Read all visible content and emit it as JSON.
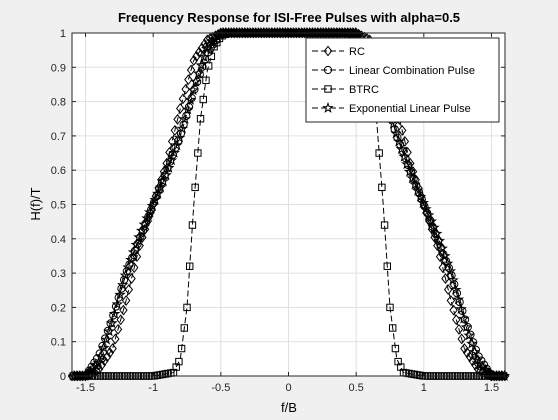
{
  "chart_data": {
    "type": "line",
    "title": "Frequency Response for ISI-Free Pulses with alpha=0.5",
    "xlabel": "f/B",
    "ylabel": "H(f)/T",
    "xlim": [
      -1.6,
      1.6
    ],
    "ylim": [
      0,
      1
    ],
    "xticks": [
      -1.5,
      -1,
      -0.5,
      0,
      0.5,
      1,
      1.5
    ],
    "xtick_labels": [
      "-1.5",
      "-1",
      "-0.5",
      "0",
      "0.5",
      "1",
      "1.5"
    ],
    "yticks": [
      0,
      0.1,
      0.2,
      0.3,
      0.4,
      0.5,
      0.6,
      0.7,
      0.8,
      0.9,
      1
    ],
    "ytick_labels": [
      "0",
      "0.1",
      "0.2",
      "0.3",
      "0.4",
      "0.5",
      "0.6",
      "0.7",
      "0.8",
      "0.9",
      "1"
    ],
    "grid": true,
    "legend_position": "top-right",
    "colors": {
      "figure_bg": "#f0f0f0",
      "axes_bg": "#ffffff",
      "line": "#000000",
      "grid": "#e0e0e0"
    },
    "series": [
      {
        "name": "RC",
        "marker": "diamond",
        "x": [
          -1.6,
          -1.5,
          -1.4,
          -1.3,
          -1.2,
          -1.1,
          -1.0,
          -0.9,
          -0.8,
          -0.7,
          -0.6,
          -0.5,
          -0.4,
          0,
          0.4,
          0.5,
          0.6,
          0.7,
          0.8,
          0.9,
          1.0,
          1.1,
          1.2,
          1.3,
          1.4,
          1.5,
          1.6
        ],
        "y": [
          0,
          0,
          0.02,
          0.08,
          0.22,
          0.38,
          0.5,
          0.62,
          0.78,
          0.92,
          0.98,
          1,
          1,
          1,
          1,
          1,
          0.98,
          0.92,
          0.78,
          0.62,
          0.5,
          0.38,
          0.22,
          0.08,
          0.02,
          0,
          0
        ]
      },
      {
        "name": "Linear Combination Pulse",
        "marker": "circle",
        "x": [
          -1.6,
          -1.5,
          -1.4,
          -1.3,
          -1.2,
          -1.1,
          -1.0,
          -0.9,
          -0.8,
          -0.7,
          -0.6,
          -0.5,
          -0.4,
          0,
          0.4,
          0.5,
          0.6,
          0.7,
          0.8,
          0.9,
          1.0,
          1.1,
          1.2,
          1.3,
          1.4,
          1.5,
          1.6
        ],
        "y": [
          0,
          0,
          0.06,
          0.17,
          0.3,
          0.4,
          0.5,
          0.6,
          0.7,
          0.83,
          0.94,
          1,
          1,
          1,
          1,
          1,
          0.94,
          0.83,
          0.7,
          0.6,
          0.5,
          0.4,
          0.3,
          0.17,
          0.06,
          0,
          0
        ]
      },
      {
        "name": "BTRC",
        "marker": "square",
        "x": [
          -1.6,
          -1.0,
          -0.85,
          -0.8,
          -0.75,
          -0.7,
          -0.65,
          -0.6,
          -0.55,
          -0.5,
          -0.45,
          -0.4,
          0,
          0.4,
          0.45,
          0.5,
          0.55,
          0.6,
          0.65,
          0.7,
          0.75,
          0.8,
          0.85,
          1.0,
          1.6
        ],
        "y": [
          0,
          0,
          0.01,
          0.05,
          0.2,
          0.5,
          0.75,
          0.89,
          0.96,
          0.99,
          1,
          1,
          1,
          1,
          1,
          0.99,
          0.96,
          0.89,
          0.75,
          0.5,
          0.2,
          0.05,
          0.01,
          0,
          0
        ]
      },
      {
        "name": "Exponential Linear Pulse",
        "marker": "star",
        "x": [
          -1.6,
          -1.5,
          -1.4,
          -1.3,
          -1.2,
          -1.1,
          -1.0,
          -0.9,
          -0.8,
          -0.7,
          -0.6,
          -0.5,
          -0.4,
          0,
          0.4,
          0.5,
          0.6,
          0.7,
          0.8,
          0.9,
          1.0,
          1.1,
          1.2,
          1.3,
          1.4,
          1.5,
          1.6
        ],
        "y": [
          0,
          0,
          0.04,
          0.16,
          0.3,
          0.41,
          0.5,
          0.59,
          0.7,
          0.84,
          0.96,
          1,
          1,
          1,
          1,
          1,
          0.96,
          0.84,
          0.7,
          0.59,
          0.5,
          0.41,
          0.3,
          0.16,
          0.04,
          0,
          0
        ]
      }
    ]
  }
}
